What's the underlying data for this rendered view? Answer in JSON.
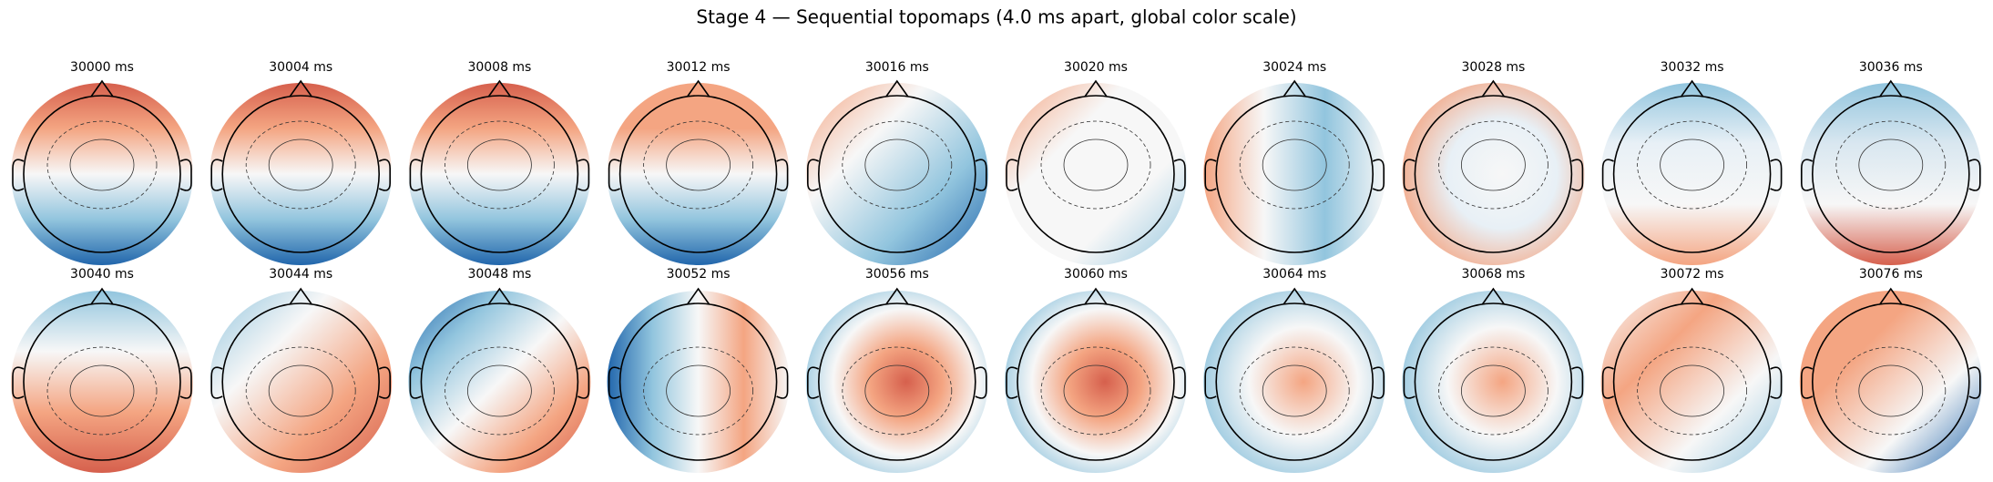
{
  "title": "Stage 4 — Sequential topomaps (4.0 ms apart, global color scale)",
  "panels": [
    {
      "label": "30000 ms"
    },
    {
      "label": "30004 ms"
    },
    {
      "label": "30008 ms"
    },
    {
      "label": "30012 ms"
    },
    {
      "label": "30016 ms"
    },
    {
      "label": "30020 ms"
    },
    {
      "label": "30024 ms"
    },
    {
      "label": "30028 ms"
    },
    {
      "label": "30032 ms"
    },
    {
      "label": "30036 ms"
    },
    {
      "label": "30040 ms"
    },
    {
      "label": "30044 ms"
    },
    {
      "label": "30048 ms"
    },
    {
      "label": "30052 ms"
    },
    {
      "label": "30056 ms"
    },
    {
      "label": "30060 ms"
    },
    {
      "label": "30064 ms"
    },
    {
      "label": "30068 ms"
    },
    {
      "label": "30072 ms"
    },
    {
      "label": "30076 ms"
    }
  ]
}
